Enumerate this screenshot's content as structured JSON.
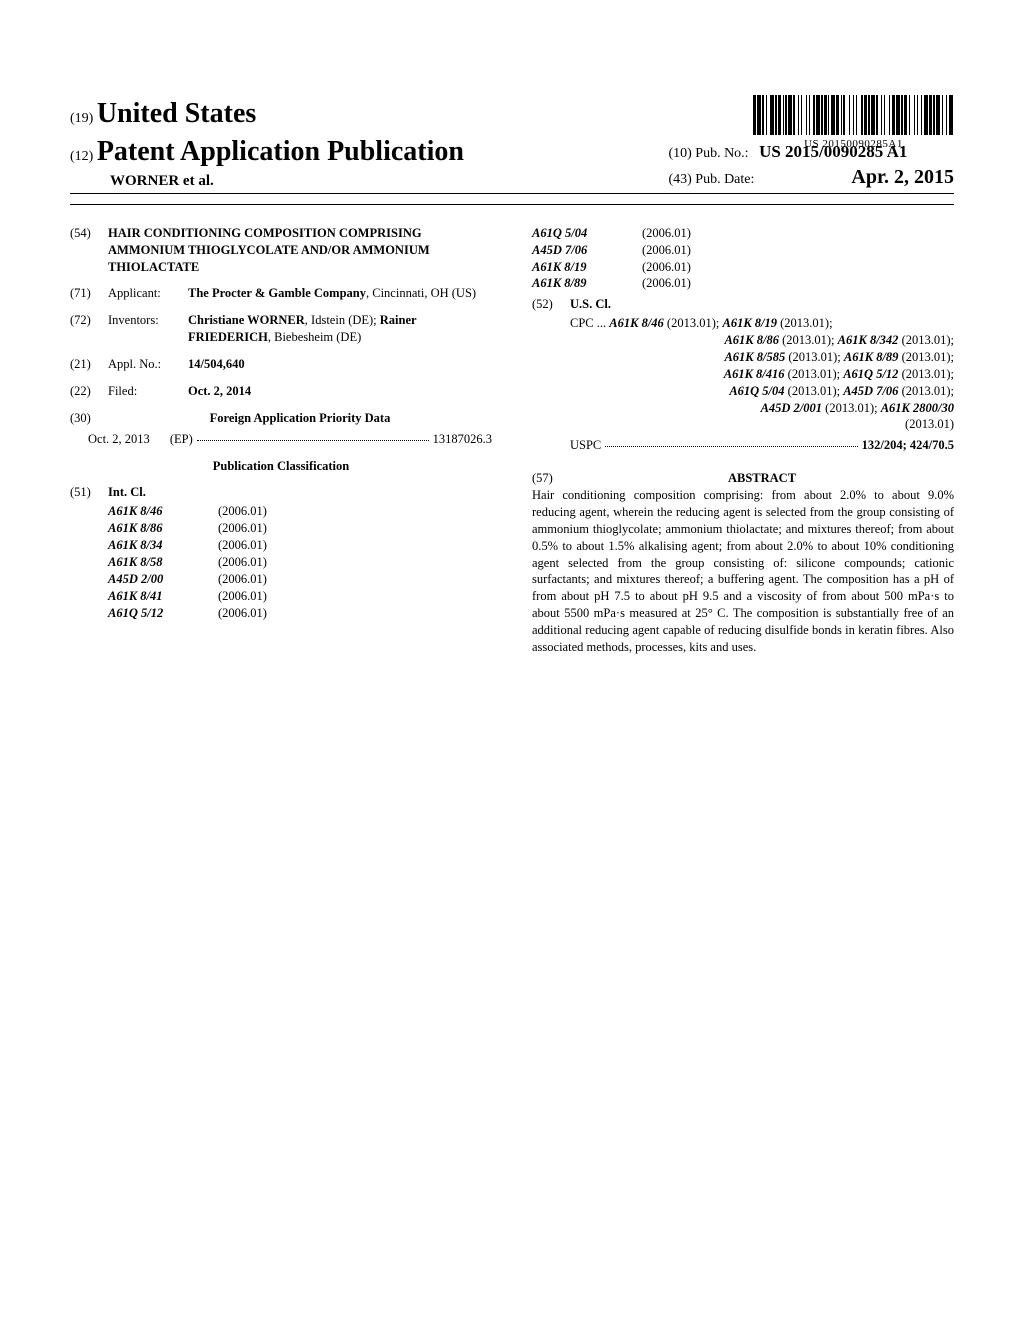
{
  "barcode_label": "US 20150090285A1",
  "header": {
    "line19_num": "(19)",
    "line19_text": "United States",
    "line12_num": "(12)",
    "line12_text": "Patent Application Publication",
    "authors": "WORNER et al.",
    "pub10_num": "(10)",
    "pub10_label": "Pub. No.:",
    "pub10_value": "US 2015/0090285 A1",
    "pub43_num": "(43)",
    "pub43_label": "Pub. Date:",
    "pub43_value": "Apr. 2, 2015"
  },
  "left": {
    "f54_num": "(54)",
    "f54_title": "HAIR CONDITIONING COMPOSITION COMPRISING AMMONIUM THIOGLYCOLATE AND/OR AMMONIUM THIOLACTATE",
    "f71_num": "(71)",
    "f71_label": "Applicant:",
    "f71_value_bold": "The Procter & Gamble Company",
    "f71_value_rest": ", Cincinnati, OH (US)",
    "f72_num": "(72)",
    "f72_label": "Inventors:",
    "f72_v1_bold": "Christiane WORNER",
    "f72_v1_rest": ", Idstein (DE); ",
    "f72_v2_bold": "Rainer FRIEDERICH",
    "f72_v2_rest": ", Biebesheim (DE)",
    "f21_num": "(21)",
    "f21_label": "Appl. No.:",
    "f21_value": "14/504,640",
    "f22_num": "(22)",
    "f22_label": "Filed:",
    "f22_value": "Oct. 2, 2014",
    "f30_num": "(30)",
    "f30_title": "Foreign Application Priority Data",
    "f30_date": "Oct. 2, 2013",
    "f30_country": "(EP)",
    "f30_appno": "13187026.3",
    "pubclass_title": "Publication Classification",
    "f51_num": "(51)",
    "f51_label": "Int. Cl.",
    "ipc_left": [
      {
        "code": "A61K 8/46",
        "year": "(2006.01)"
      },
      {
        "code": "A61K 8/86",
        "year": "(2006.01)"
      },
      {
        "code": "A61K 8/34",
        "year": "(2006.01)"
      },
      {
        "code": "A61K 8/58",
        "year": "(2006.01)"
      },
      {
        "code": "A45D 2/00",
        "year": "(2006.01)"
      },
      {
        "code": "A61K 8/41",
        "year": "(2006.01)"
      },
      {
        "code": "A61Q 5/12",
        "year": "(2006.01)"
      }
    ]
  },
  "right": {
    "ipc_right": [
      {
        "code": "A61Q 5/04",
        "year": "(2006.01)"
      },
      {
        "code": "A45D 7/06",
        "year": "(2006.01)"
      },
      {
        "code": "A61K 8/19",
        "year": "(2006.01)"
      },
      {
        "code": "A61K 8/89",
        "year": "(2006.01)"
      }
    ],
    "f52_num": "(52)",
    "f52_label": "U.S. Cl.",
    "cpc_prefix": "CPC ...",
    "cpc_entries": [
      "A61K 8/46 (2013.01); A61K 8/19 (2013.01);",
      "A61K 8/86 (2013.01); A61K 8/342 (2013.01);",
      "A61K 8/585 (2013.01); A61K 8/89 (2013.01);",
      "A61K 8/416 (2013.01); A61Q 5/12 (2013.01);",
      "A61Q 5/04 (2013.01); A45D 7/06 (2013.01);",
      "A45D 2/001 (2013.01); A61K 2800/30",
      "(2013.01)"
    ],
    "uspc_label": "USPC",
    "uspc_value": "132/204; 424/70.5",
    "f57_num": "(57)",
    "abstract_title": "ABSTRACT",
    "abstract_body": "Hair conditioning composition comprising: from about 2.0% to about 9.0% reducing agent, wherein the reducing agent is selected from the group consisting of ammonium thioglycolate; ammonium thiolactate; and mixtures thereof; from about 0.5% to about 1.5% alkalising agent; from about 2.0% to about 10% conditioning agent selected from the group consisting of: silicone compounds; cationic surfactants; and mixtures thereof; a buffering agent. The composition has a pH of from about pH 7.5 to about pH 9.5 and a viscosity of from about 500 mPa·s to about 5500 mPa·s measured at 25° C. The composition is substantially free of an additional reducing agent capable of reducing disulfide bonds in keratin fibres. Also associated methods, processes, kits and uses."
  },
  "barcode_widths": [
    3,
    1,
    4,
    1,
    2,
    2,
    1,
    3,
    4,
    1,
    2,
    1,
    3,
    2,
    1,
    1,
    2,
    1,
    4,
    1,
    2,
    3,
    1,
    2,
    1,
    4,
    1,
    2,
    1,
    3,
    2,
    1,
    4,
    1,
    2,
    1,
    3,
    1,
    1,
    2,
    4,
    1,
    3,
    2,
    1,
    1,
    2,
    4,
    1,
    3,
    1,
    2,
    1,
    4,
    2,
    1,
    3,
    1,
    2,
    1,
    4,
    1,
    2,
    3,
    1,
    2,
    1,
    4,
    1,
    2,
    3,
    1,
    4,
    1,
    2,
    1,
    3,
    2,
    1,
    4,
    1,
    2,
    1,
    3,
    1,
    2,
    4,
    1,
    3,
    1,
    2,
    1,
    4,
    2,
    1,
    3,
    1,
    2,
    4,
    1
  ]
}
